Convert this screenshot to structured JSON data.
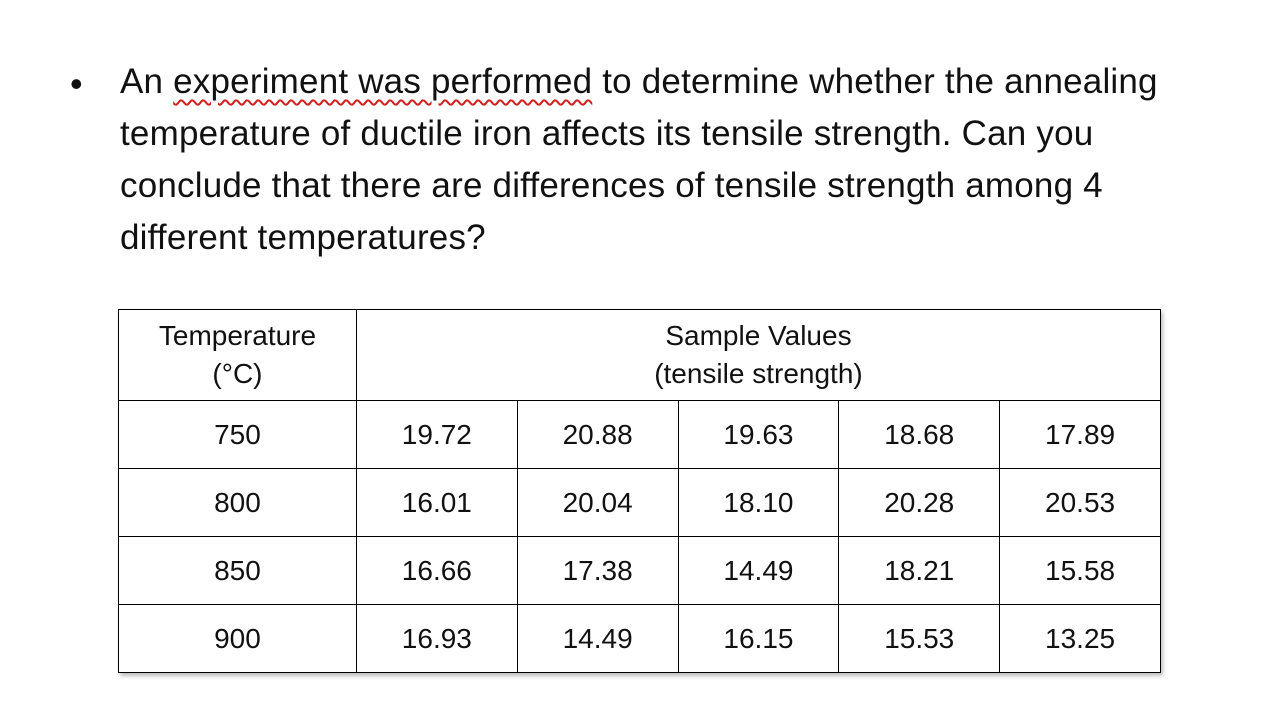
{
  "bullet": {
    "marker": "•",
    "pre": "An ",
    "underlined": "experiment was performed",
    "post": " to determine whether the annealing temperature of ductile iron affects its tensile strength. Can you conclude that there are differences of tensile strength among 4 different temperatures?"
  },
  "table": {
    "header": {
      "temp_line1": "Temperature",
      "temp_line2": "(°C)",
      "samples_line1": "Sample Values",
      "samples_line2": "(tensile strength)"
    },
    "rows": [
      {
        "temp": "750",
        "values": [
          "19.72",
          "20.88",
          "19.63",
          "18.68",
          "17.89"
        ]
      },
      {
        "temp": "800",
        "values": [
          "16.01",
          "20.04",
          "18.10",
          "20.28",
          "20.53"
        ]
      },
      {
        "temp": "850",
        "values": [
          "16.66",
          "17.38",
          "14.49",
          "18.21",
          "15.58"
        ]
      },
      {
        "temp": "900",
        "values": [
          "16.93",
          "14.49",
          "16.15",
          "15.53",
          "13.25"
        ]
      }
    ]
  },
  "colors": {
    "squiggle": "#d02020",
    "text": "#111111",
    "border": "#000000"
  }
}
